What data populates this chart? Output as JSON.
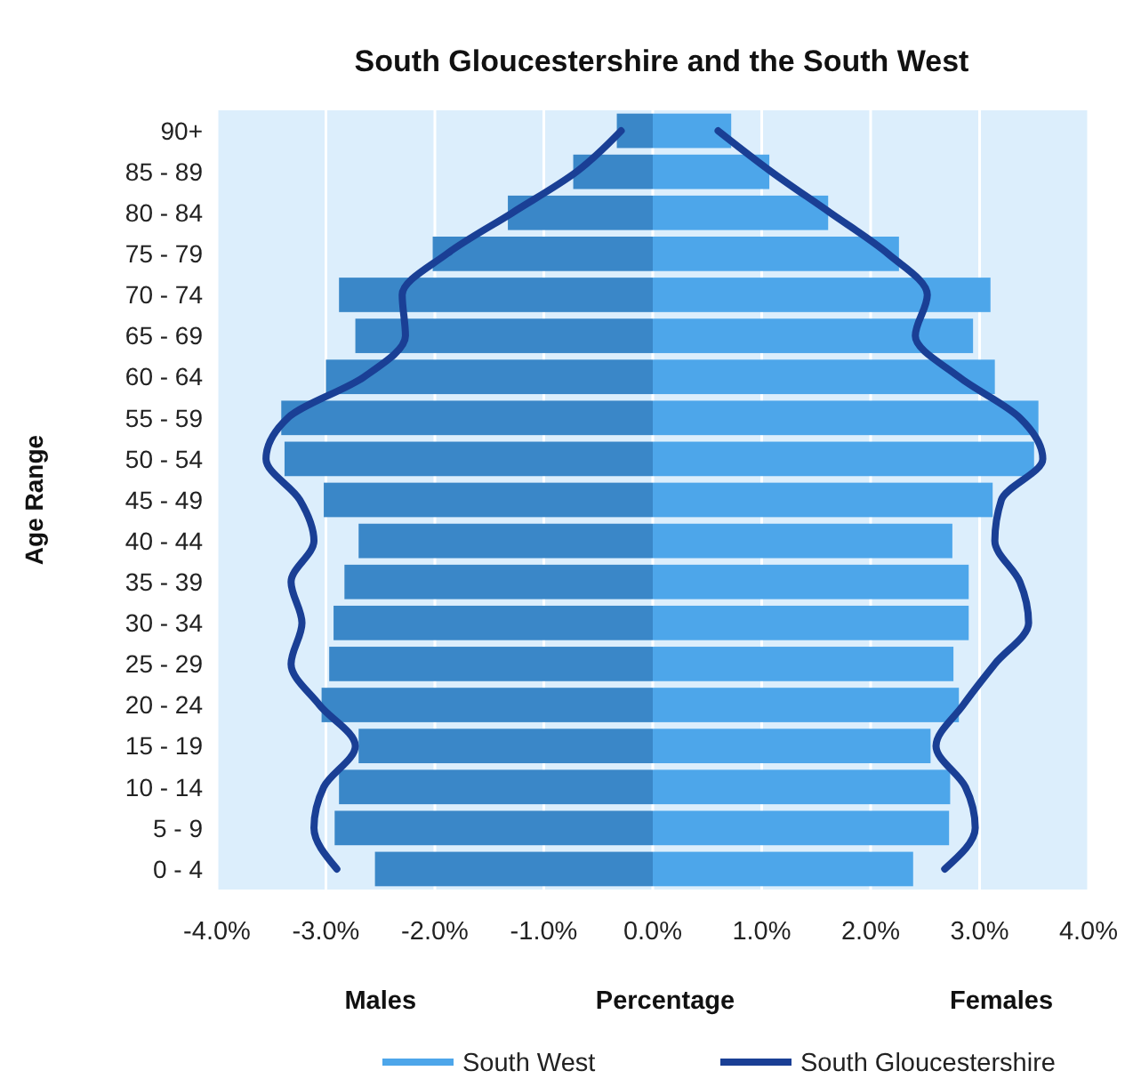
{
  "chart_data": {
    "type": "bar",
    "orientation": "horizontal",
    "title": "South Gloucestershire and the South West",
    "xlabel": "Percentage",
    "ylabel": "Age Range",
    "annotations": [
      "Males",
      "Females"
    ],
    "categories": [
      "90+",
      "85 - 89",
      "80 - 84",
      "75 - 79",
      "70 - 74",
      "65 - 69",
      "60 - 64",
      "55 - 59",
      "50 - 54",
      "45 - 49",
      "40 - 44",
      "35 - 39",
      "30 - 34",
      "25 - 29",
      "20 - 24",
      "15 - 19",
      "10 - 14",
      "5 - 9",
      "0 - 4"
    ],
    "series": [
      {
        "color": "#3a87c8",
        "values": [
          -0.33,
          -0.73,
          -1.33,
          -2.02,
          -2.88,
          -2.73,
          -3.0,
          -3.41,
          -3.38,
          -3.02,
          -2.7,
          -2.83,
          -2.93,
          -2.97,
          -3.04,
          -2.7,
          -2.88,
          -2.92,
          -2.55
        ]
      },
      {
        "name": "South West",
        "color": "#4da6ea",
        "values": [
          0.72,
          1.07,
          1.61,
          2.26,
          3.1,
          2.94,
          3.14,
          3.54,
          3.5,
          3.12,
          2.75,
          2.9,
          2.9,
          2.76,
          2.81,
          2.55,
          2.73,
          2.72,
          2.39
        ]
      },
      {
        "type": "line",
        "color": "#1a3f95",
        "values": [
          -0.29,
          -0.7,
          -1.29,
          -1.89,
          -2.3,
          -2.27,
          -2.65,
          -3.35,
          -3.55,
          -3.24,
          -3.11,
          -3.32,
          -3.22,
          -3.32,
          -3.06,
          -2.73,
          -3.02,
          -3.11,
          -2.9
        ]
      },
      {
        "type": "line",
        "name": "South Gloucestershire",
        "color": "#1a3f95",
        "values": [
          0.6,
          1.09,
          1.63,
          2.16,
          2.52,
          2.41,
          2.81,
          3.37,
          3.58,
          3.2,
          3.14,
          3.37,
          3.45,
          3.14,
          2.85,
          2.6,
          2.87,
          2.96,
          2.68
        ]
      }
    ],
    "xlim": [
      -4,
      4
    ],
    "xticks": [
      {
        "value": -4,
        "label": "-4.0%"
      },
      {
        "value": -3,
        "label": "-3.0%"
      },
      {
        "value": -2,
        "label": "-2.0%"
      },
      {
        "value": -1,
        "label": "-1.0%"
      },
      {
        "value": 0,
        "label": "0.0%"
      },
      {
        "value": 1,
        "label": "1.0%"
      },
      {
        "value": 2,
        "label": "2.0%"
      },
      {
        "value": 3,
        "label": "3.0%"
      },
      {
        "value": 4,
        "label": "4.0%"
      }
    ],
    "stacked": true,
    "grid": "x",
    "legend": "bottom",
    "line_style": "solid",
    "marker": "none"
  }
}
